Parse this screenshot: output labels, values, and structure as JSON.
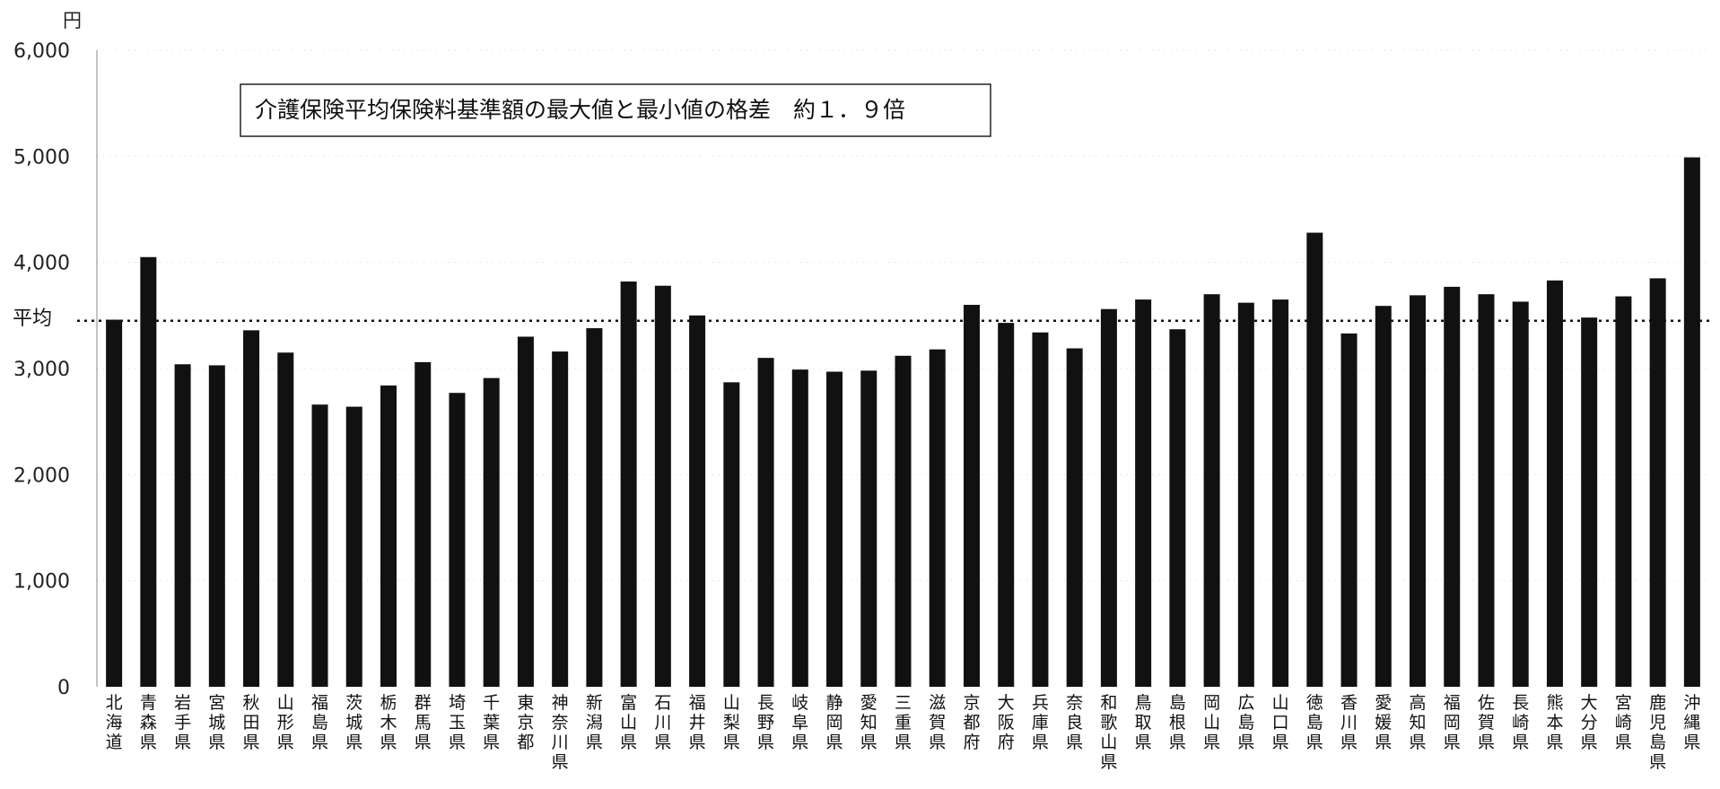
{
  "chart_data": {
    "type": "bar",
    "title": "介護保険平均保険料基準額の最大値と最小値の格差　約１．９倍",
    "ylabel": "円",
    "ylim": [
      0,
      6000
    ],
    "yticks": [
      "0",
      "1,000",
      "2,000",
      "3,000",
      "4,000",
      "5,000",
      "6,000"
    ],
    "average": {
      "label": "平均",
      "value": 3450
    },
    "grid": true,
    "categories": [
      "北海道",
      "青森県",
      "岩手県",
      "宮城県",
      "秋田県",
      "山形県",
      "福島県",
      "茨城県",
      "栃木県",
      "群馬県",
      "埼玉県",
      "千葉県",
      "東京都",
      "神奈川県",
      "新潟県",
      "富山県",
      "石川県",
      "福井県",
      "山梨県",
      "長野県",
      "岐阜県",
      "静岡県",
      "愛知県",
      "三重県",
      "滋賀県",
      "京都府",
      "大阪府",
      "兵庫県",
      "奈良県",
      "和歌山県",
      "鳥取県",
      "島根県",
      "岡山県",
      "広島県",
      "山口県",
      "徳島県",
      "香川県",
      "愛媛県",
      "高知県",
      "福岡県",
      "佐賀県",
      "長崎県",
      "熊本県",
      "大分県",
      "宮崎県",
      "鹿児島県",
      "沖縄県"
    ],
    "values": [
      3460,
      4050,
      3040,
      3030,
      3360,
      3150,
      2660,
      2640,
      2840,
      3060,
      2770,
      2910,
      3300,
      3160,
      3380,
      3820,
      3780,
      3500,
      2870,
      3100,
      2990,
      2970,
      2980,
      3120,
      3180,
      3600,
      3430,
      3340,
      3190,
      3560,
      3650,
      3370,
      3700,
      3620,
      3650,
      4280,
      3330,
      3590,
      3690,
      3770,
      3700,
      3630,
      3830,
      3480,
      3680,
      3850,
      4990
    ],
    "colors": {
      "bar": "#111111",
      "background": "#ffffff"
    }
  }
}
